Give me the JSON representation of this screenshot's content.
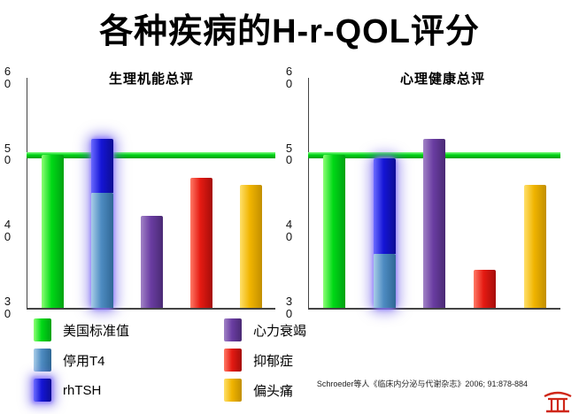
{
  "title": "各种疾病的H-r-QOL评分",
  "citation": "Schroeder等人《临床内分泌与代谢杂志》2006; 91:878-884",
  "colors": {
    "green": {
      "light": "#8dff75",
      "base": "#00d916",
      "dark": "#00a212"
    },
    "steelblue": {
      "light": "#a9cde8",
      "base": "#4e8cc2",
      "dark": "#2f6795"
    },
    "blue": {
      "light": "#6b6bff",
      "base": "#1515d6",
      "dark": "#0d0d94"
    },
    "purple": {
      "light": "#a183c6",
      "base": "#6a3da2",
      "dark": "#4a2a74"
    },
    "red": {
      "light": "#ff7a66",
      "base": "#e51a12",
      "dark": "#a50d0a"
    },
    "gold": {
      "light": "#ffe06b",
      "base": "#f0b400",
      "dark": "#c28f00"
    }
  },
  "chart_data": [
    {
      "type": "bar",
      "title": "生理机能总评",
      "ylim": [
        30,
        60
      ],
      "yticks": [
        60,
        50,
        40,
        30
      ],
      "reference_line": {
        "label": "美国标准值",
        "value": 50
      },
      "bars": [
        {
          "name": "美国标准值",
          "glow": false,
          "segments": [
            {
              "label": "美国标准值",
              "color": "green",
              "from": 30,
              "to": 50
            }
          ]
        },
        {
          "name": "停用T4-rhTSH",
          "glow": true,
          "segments": [
            {
              "label": "停用T4",
              "color": "steelblue",
              "from": 30,
              "to": 45
            },
            {
              "label": "rhTSH",
              "color": "blue",
              "from": 45,
              "to": 52
            }
          ]
        },
        {
          "name": "心力衰竭",
          "glow": false,
          "segments": [
            {
              "label": "心力衰竭",
              "color": "purple",
              "from": 30,
              "to": 42
            }
          ]
        },
        {
          "name": "抑郁症",
          "glow": false,
          "segments": [
            {
              "label": "抑郁症",
              "color": "red",
              "from": 30,
              "to": 47
            }
          ]
        },
        {
          "name": "偏头痛",
          "glow": false,
          "segments": [
            {
              "label": "偏头痛",
              "color": "gold",
              "from": 30,
              "to": 46
            }
          ]
        }
      ]
    },
    {
      "type": "bar",
      "title": "心理健康总评",
      "ylim": [
        30,
        60
      ],
      "yticks": [
        60,
        50,
        40,
        30
      ],
      "reference_line": {
        "label": "美国标准值",
        "value": 50
      },
      "bars": [
        {
          "name": "美国标准值",
          "glow": false,
          "segments": [
            {
              "label": "美国标准值",
              "color": "green",
              "from": 30,
              "to": 50
            }
          ]
        },
        {
          "name": "停用T4-rhTSH",
          "glow": true,
          "segments": [
            {
              "label": "停用T4",
              "color": "steelblue",
              "from": 30,
              "to": 37
            },
            {
              "label": "rhTSH",
              "color": "blue",
              "from": 37,
              "to": 49.5
            }
          ]
        },
        {
          "name": "心力衰竭",
          "glow": false,
          "segments": [
            {
              "label": "心力衰竭",
              "color": "purple",
              "from": 30,
              "to": 52
            }
          ]
        },
        {
          "name": "抑郁症",
          "glow": false,
          "segments": [
            {
              "label": "抑郁症",
              "color": "red",
              "from": 30,
              "to": 35
            }
          ]
        },
        {
          "name": "偏头痛",
          "glow": false,
          "segments": [
            {
              "label": "偏头痛",
              "color": "gold",
              "from": 30,
              "to": 46
            }
          ]
        }
      ]
    }
  ],
  "legend": {
    "items": [
      {
        "label": "美国标准值",
        "color": "green",
        "glow": false
      },
      {
        "label": "停用T4",
        "color": "steelblue",
        "glow": false
      },
      {
        "label": "rhTSH",
        "color": "blue",
        "glow": true
      },
      {
        "label": "心力衰竭",
        "color": "purple",
        "glow": false
      },
      {
        "label": "抑郁症",
        "color": "red",
        "glow": false
      },
      {
        "label": "偏头痛",
        "color": "gold",
        "glow": false
      }
    ]
  }
}
